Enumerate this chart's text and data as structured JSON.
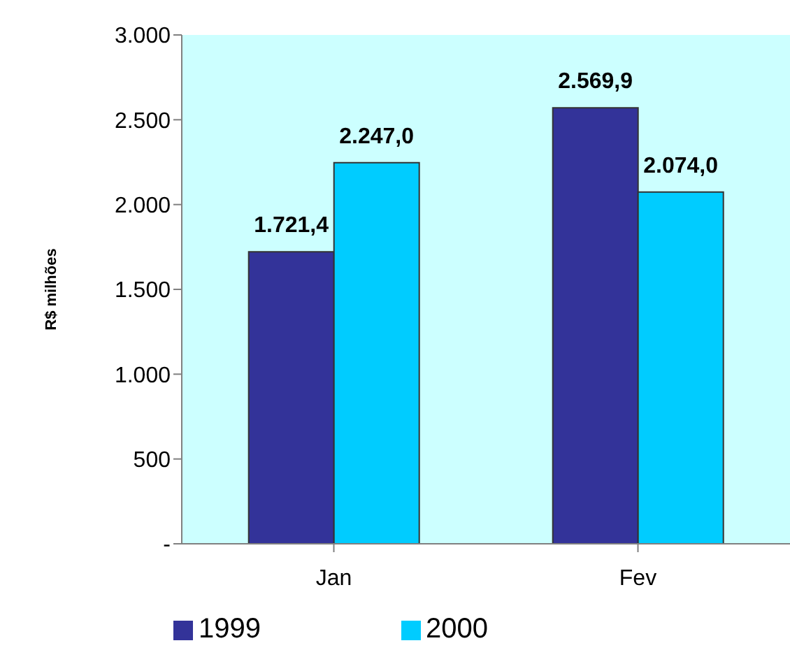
{
  "chart_data": {
    "type": "bar",
    "ylabel": "R$ milhões",
    "categories": [
      "Jan",
      "Fev"
    ],
    "series": [
      {
        "name": "1999",
        "color": "#333399",
        "values": [
          1721.4,
          2569.9
        ],
        "value_labels": [
          "1.721,4",
          "2.569,9"
        ]
      },
      {
        "name": "2000",
        "color": "#00ccff",
        "values": [
          2247.0,
          2074.0
        ],
        "value_labels": [
          "2.247,0",
          "2.074,0"
        ]
      }
    ],
    "ylim": [
      0,
      3000
    ],
    "yticks": [
      {
        "value": 0,
        "label": "-"
      },
      500,
      {
        "value": 1000,
        "label": "1.000"
      },
      {
        "value": 1500,
        "label": "1.500"
      },
      {
        "value": 2000,
        "label": "2.000"
      },
      {
        "value": 2500,
        "label": "2.500"
      },
      {
        "value": 3000,
        "label": "3.000"
      }
    ],
    "grid": false,
    "legend": "bottom"
  }
}
